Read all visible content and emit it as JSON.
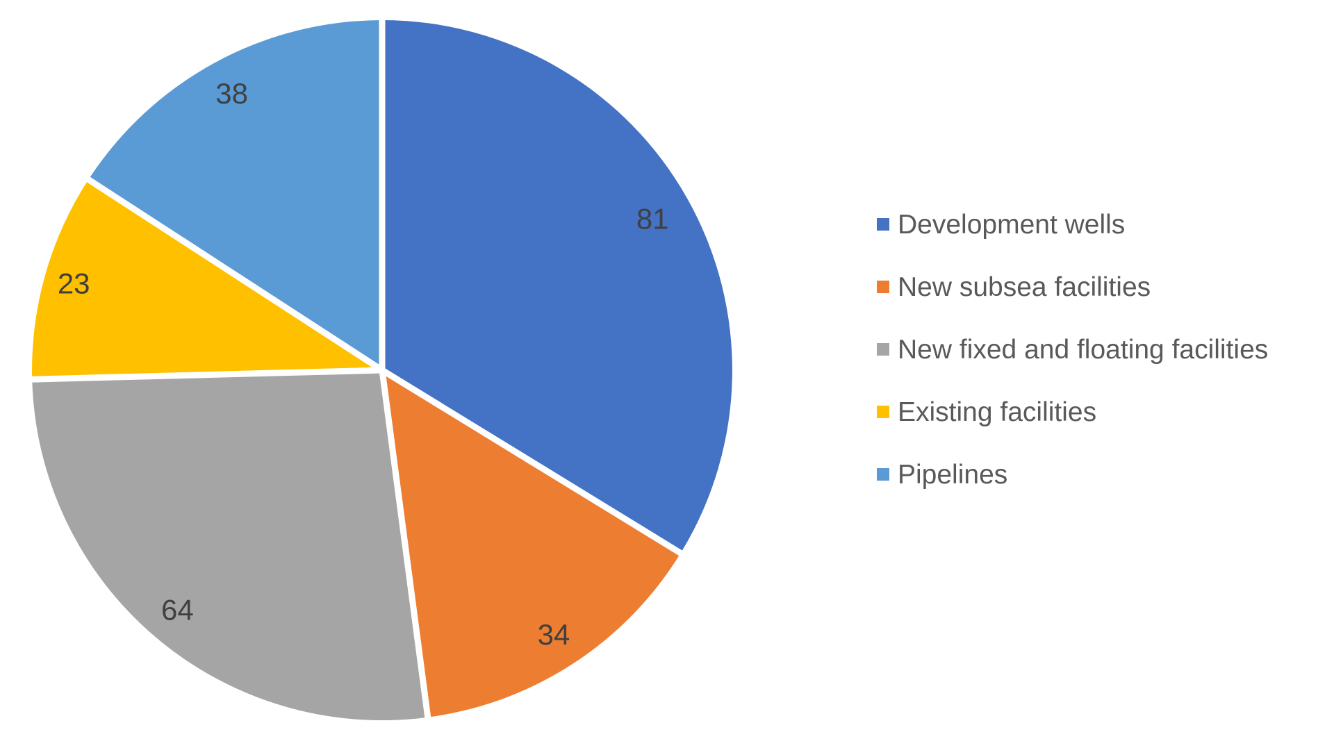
{
  "chart_data": {
    "type": "pie",
    "slices": [
      {
        "label": "Development wells",
        "value": 81,
        "color": "#4472C4"
      },
      {
        "label": "New subsea facilities",
        "value": 34,
        "color": "#ED7D31"
      },
      {
        "label": "New fixed and floating facilities",
        "value": 64,
        "color": "#A5A5A5"
      },
      {
        "label": "Existing facilities",
        "value": 23,
        "color": "#FFC000"
      },
      {
        "label": "Pipelines",
        "value": 38,
        "color": "#5B9BD5"
      }
    ],
    "layout": {
      "start_angle_deg": 0,
      "direction": "clockwise",
      "legend_position": "right",
      "data_labels": "inside-end",
      "separator_color": "#FFFFFF",
      "data_label_color": "#404040",
      "legend_text_color": "#595959",
      "background": "#FFFFFF"
    }
  }
}
